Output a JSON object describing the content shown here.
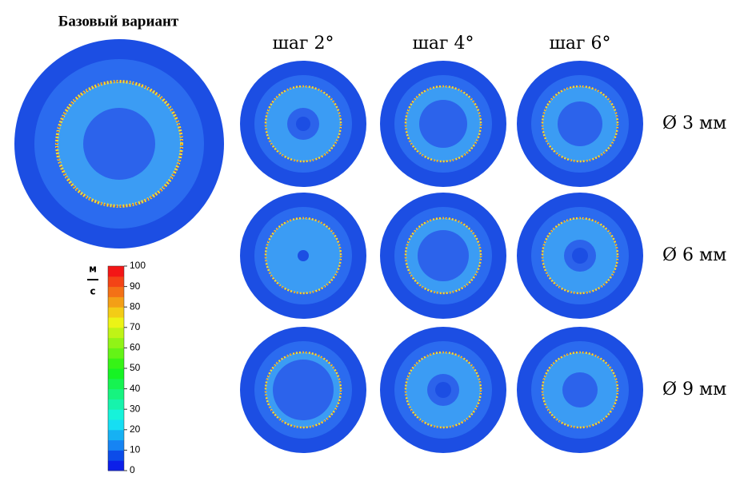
{
  "title": "Базовый вариант",
  "columns": [
    "шаг 2°",
    "шаг 4°",
    "шаг 6°"
  ],
  "rows": [
    "Ø 3 мм",
    "Ø 6 мм",
    "Ø 9 мм"
  ],
  "colorbar": {
    "unit_top": "м",
    "unit_bottom": "с",
    "range": [
      0,
      100
    ],
    "ticks": [
      0,
      10,
      20,
      30,
      40,
      50,
      60,
      70,
      80,
      90,
      100
    ]
  }
}
